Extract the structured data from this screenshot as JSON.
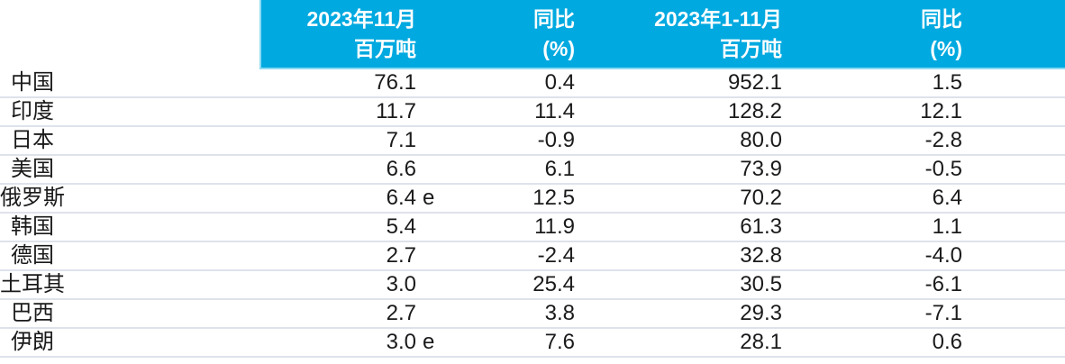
{
  "colors": {
    "header_bg": "#00A9E0",
    "header_edge": "#8ADAF4",
    "header_text": "#FFFFFF",
    "body_text": "#1A1A1A",
    "row_divider": "#DEE2EB"
  },
  "table": {
    "header": {
      "col1": {
        "line1": "2023年11月",
        "line2": "百万吨"
      },
      "col2": {
        "line1": "同比",
        "line2": "(%)"
      },
      "col3": {
        "line1": "2023年1-11月",
        "line2": "百万吨"
      },
      "col4": {
        "line1": "同比",
        "line2": "(%)"
      }
    },
    "rows": [
      {
        "country": "中国",
        "nov": "76.1",
        "nov_suffix": "",
        "nov_yoy": "0.4",
        "ytd": "952.1",
        "ytd_yoy": "1.5"
      },
      {
        "country": "印度",
        "nov": "11.7",
        "nov_suffix": "",
        "nov_yoy": "11.4",
        "ytd": "128.2",
        "ytd_yoy": "12.1"
      },
      {
        "country": "日本",
        "nov": "7.1",
        "nov_suffix": "",
        "nov_yoy": "-0.9",
        "ytd": "80.0",
        "ytd_yoy": "-2.8"
      },
      {
        "country": "美国",
        "nov": "6.6",
        "nov_suffix": "",
        "nov_yoy": "6.1",
        "ytd": "73.9",
        "ytd_yoy": "-0.5"
      },
      {
        "country": "俄罗斯",
        "nov": "6.4",
        "nov_suffix": "e",
        "nov_yoy": "12.5",
        "ytd": "70.2",
        "ytd_yoy": "6.4"
      },
      {
        "country": "韩国",
        "nov": "5.4",
        "nov_suffix": "",
        "nov_yoy": "11.9",
        "ytd": "61.3",
        "ytd_yoy": "1.1"
      },
      {
        "country": "德国",
        "nov": "2.7",
        "nov_suffix": "",
        "nov_yoy": "-2.4",
        "ytd": "32.8",
        "ytd_yoy": "-4.0"
      },
      {
        "country": "土耳其",
        "nov": "3.0",
        "nov_suffix": "",
        "nov_yoy": "25.4",
        "ytd": "30.5",
        "ytd_yoy": "-6.1"
      },
      {
        "country": "巴西",
        "nov": "2.7",
        "nov_suffix": "",
        "nov_yoy": "3.8",
        "ytd": "29.3",
        "ytd_yoy": "-7.1"
      },
      {
        "country": "伊朗",
        "nov": "3.0",
        "nov_suffix": "e",
        "nov_yoy": "7.6",
        "ytd": "28.1",
        "ytd_yoy": "0.6"
      }
    ]
  },
  "chart_data": {
    "type": "table",
    "columns": [
      "",
      "2023年11月 百万吨",
      "同比 (%)",
      "2023年1-11月 百万吨",
      "同比 (%)"
    ],
    "rows": [
      [
        "中国",
        "76.1",
        "0.4",
        "952.1",
        "1.5"
      ],
      [
        "印度",
        "11.7",
        "11.4",
        "128.2",
        "12.1"
      ],
      [
        "日本",
        "7.1",
        "-0.9",
        "80.0",
        "-2.8"
      ],
      [
        "美国",
        "6.6",
        "6.1",
        "73.9",
        "-0.5"
      ],
      [
        "俄罗斯",
        "6.4 e",
        "12.5",
        "70.2",
        "6.4"
      ],
      [
        "韩国",
        "5.4",
        "11.9",
        "61.3",
        "1.1"
      ],
      [
        "德国",
        "2.7",
        "-2.4",
        "32.8",
        "-4.0"
      ],
      [
        "土耳其",
        "3.0",
        "25.4",
        "30.5",
        "-6.1"
      ],
      [
        "巴西",
        "2.7",
        "3.8",
        "29.3",
        "-7.1"
      ],
      [
        "伊朗",
        "3.0 e",
        "7.6",
        "28.1",
        "0.6"
      ]
    ]
  }
}
